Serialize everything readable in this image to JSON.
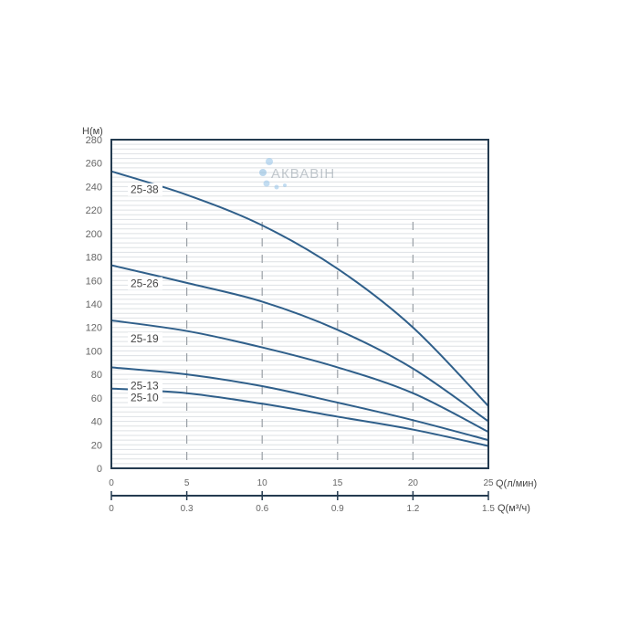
{
  "chart_data": {
    "type": "line",
    "ylabel": "H(м)",
    "xlabel": "Q(л/мин)",
    "xlabel2": "Q(м³/ч)",
    "xlim": [
      0,
      25
    ],
    "ylim": [
      0,
      280
    ],
    "xticks": [
      0,
      5,
      10,
      15,
      20,
      25
    ],
    "xticks2": [
      "0",
      "0.3",
      "0.6",
      "0.9",
      "1.2",
      "1.5"
    ],
    "yticks": [
      0,
      20,
      40,
      60,
      80,
      100,
      120,
      140,
      160,
      180,
      200,
      220,
      240,
      260,
      280
    ],
    "grid": "horizontal minor lines, dashed verticals at 5,10,15,20",
    "line_color": "#2f5f8a",
    "watermark": "АКВАВІН",
    "x": [
      0,
      5,
      10,
      15,
      20,
      25
    ],
    "series": [
      {
        "name": "25-38",
        "values": [
          253,
          233,
          207,
          170,
          120,
          53
        ]
      },
      {
        "name": "25-26",
        "values": [
          173,
          158,
          142,
          118,
          85,
          40
        ]
      },
      {
        "name": "25-19",
        "values": [
          126,
          117,
          103,
          86,
          64,
          31
        ]
      },
      {
        "name": "25-13",
        "values": [
          86,
          80,
          70,
          56,
          41,
          24
        ]
      },
      {
        "name": "25-10",
        "values": [
          68,
          64,
          55,
          44,
          33,
          19
        ]
      }
    ]
  }
}
